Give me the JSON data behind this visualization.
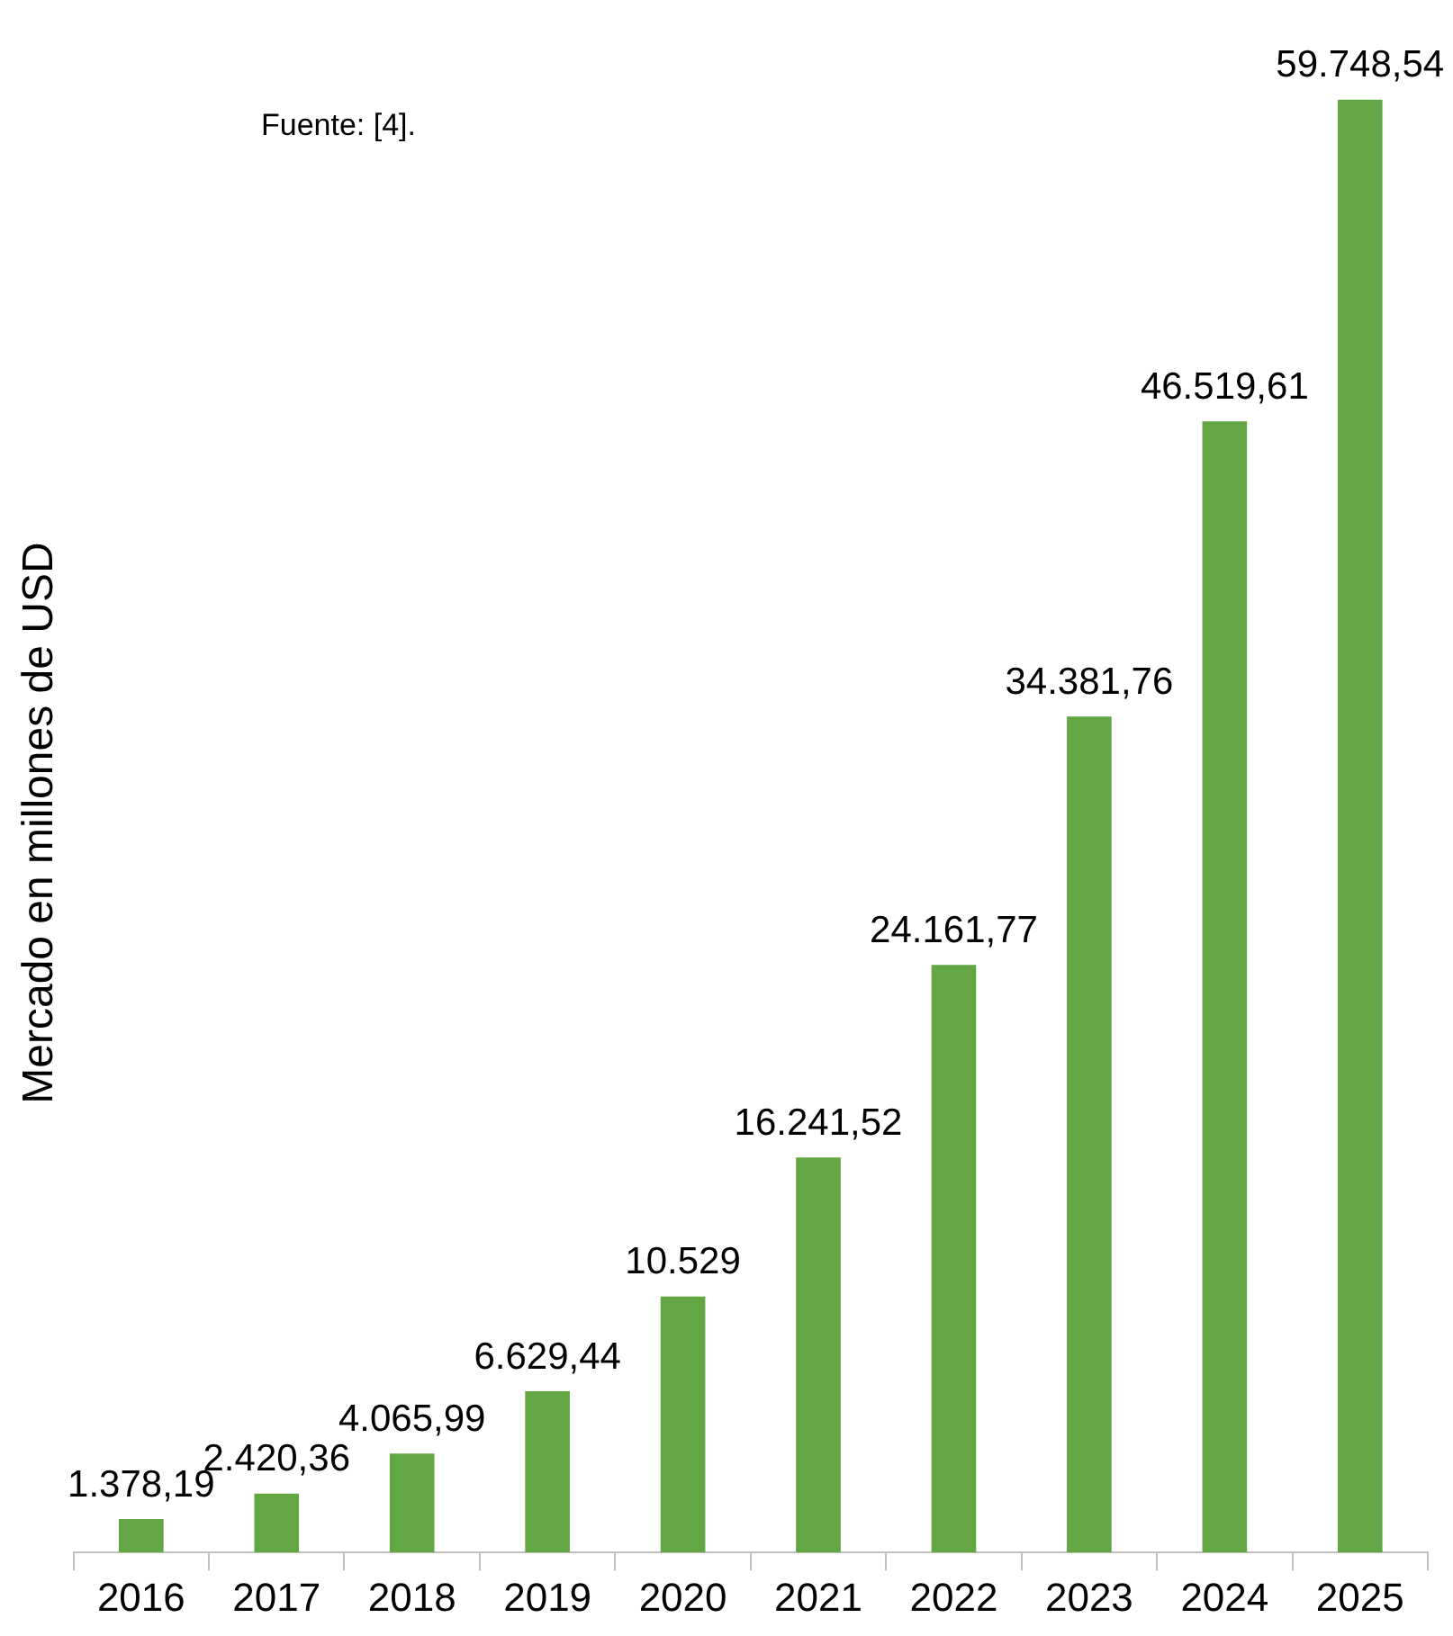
{
  "chart_data": {
    "type": "bar",
    "ylabel": "Mercado en millones de USD",
    "annotations": [
      "Fuente: [4]."
    ],
    "categories": [
      "2016",
      "2017",
      "2018",
      "2019",
      "2020",
      "2021",
      "2022",
      "2023",
      "2024",
      "2025"
    ],
    "values": [
      1378.19,
      2420.36,
      4065.99,
      6629.44,
      10529,
      16241.52,
      24161.77,
      34381.76,
      46519.61,
      59748.54
    ],
    "value_labels": [
      "1.378,19",
      "2.420,36",
      "4.065,99",
      "6.629,44",
      "10.529",
      "16.241,52",
      "24.161,77",
      "34.381,76",
      "46.519,61",
      "59.748,54"
    ],
    "color": "#63a744",
    "tick_labels": "x",
    "grid": false,
    "legend": false
  }
}
